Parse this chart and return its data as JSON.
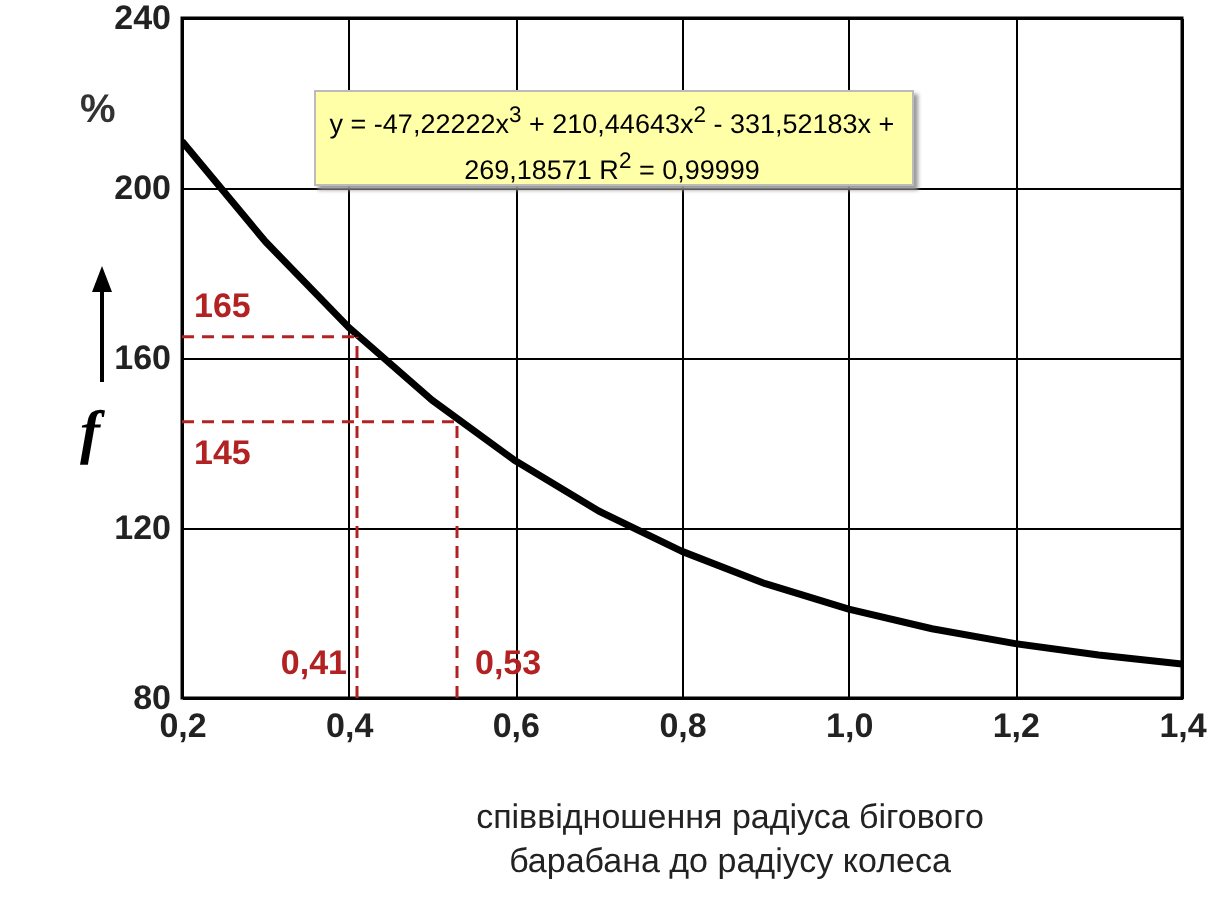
{
  "chart_data": {
    "type": "line",
    "xlabel": "співвідношення радіуса бігового барабана до радіусу колеса",
    "ylabel": "f",
    "annotations": [
      "%",
      "y = -47,22222x$^{3}$ + 210,44643x$^{2}$ - 331,52183x + 269,18571 R$^{2}$ = 0,99999"
    ],
    "series": [
      {
        "color": "#000000",
        "x": [
          0.2,
          0.3,
          0.4,
          0.5,
          0.6,
          0.7,
          0.8,
          0.9,
          1.0,
          1.1,
          1.2,
          1.3,
          1.4
        ],
        "values": [
          211,
          187.4,
          167.2,
          150.1,
          135.8,
          124,
          114.5,
          106.9,
          100.9,
          96.3,
          92.8,
          90.1,
          88
        ]
      }
    ],
    "xlim": [
      0.2,
      1.4
    ],
    "xticks": [
      {
        "value": 0.2,
        "label": "0,2"
      },
      {
        "value": 0.4,
        "label": "0,4"
      },
      {
        "value": 0.6,
        "label": "0,6"
      },
      {
        "value": 0.8,
        "label": "0,8"
      },
      {
        "value": 1.0,
        "label": "1,0"
      },
      {
        "value": 1.2,
        "label": "1,2"
      },
      {
        "value": 1.4,
        "label": "1,4"
      }
    ],
    "ylim": [
      80,
      240
    ],
    "yticks": [
      80,
      120,
      160,
      200,
      240
    ],
    "grid": true,
    "marker": "none",
    "line_style": "solid",
    "ref_lines": [
      {
        "axis": "y",
        "value": 165,
        "label": "165",
        "color": "#b22222",
        "line_style": "dashed"
      },
      {
        "axis": "y",
        "value": 145,
        "label": "145",
        "color": "#b22222",
        "line_style": "dashed"
      },
      {
        "axis": "x",
        "value": 0.41,
        "label": "0,41",
        "color": "#b22222",
        "line_style": "dashed"
      },
      {
        "axis": "x",
        "value": 0.53,
        "label": "0,53",
        "color": "#b22222",
        "line_style": "dashed"
      }
    ]
  }
}
